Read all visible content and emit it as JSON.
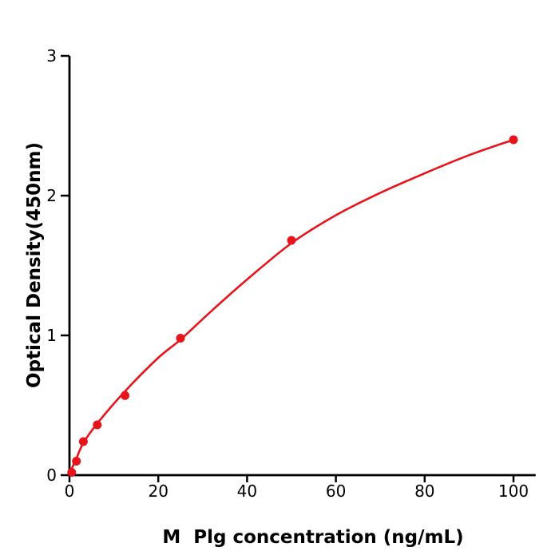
{
  "figure": {
    "background": "#ffffff"
  },
  "chart_data": {
    "type": "scatter",
    "subtype": "standard-curve-with-fitted-line",
    "title": "",
    "xlabel": "M  Plg concentration (ng/mL)",
    "ylabel": "Optical Density(450nm)",
    "xlim": [
      0,
      105
    ],
    "ylim": [
      0,
      3
    ],
    "x_ticks": [
      0,
      20,
      40,
      60,
      80,
      100
    ],
    "y_ticks": [
      0,
      1,
      2,
      3
    ],
    "grid": false,
    "legend": "none",
    "colors": {
      "curve": "#e8141c",
      "points": "#e8141c",
      "axis": "#000000",
      "text": "#000000",
      "background": "#ffffff"
    },
    "points": [
      [
        0.5,
        0.02
      ],
      [
        1.56,
        0.1
      ],
      [
        3.125,
        0.24
      ],
      [
        6.25,
        0.36
      ],
      [
        12.5,
        0.57
      ],
      [
        25,
        0.98
      ],
      [
        50,
        1.68
      ],
      [
        100,
        2.4
      ]
    ],
    "fit_curve": [
      [
        0,
        0.01
      ],
      [
        1.56,
        0.12
      ],
      [
        3.125,
        0.23
      ],
      [
        6.25,
        0.37
      ],
      [
        12.5,
        0.6
      ],
      [
        20,
        0.84
      ],
      [
        25,
        0.97
      ],
      [
        32.5,
        1.19
      ],
      [
        40,
        1.4
      ],
      [
        50,
        1.66
      ],
      [
        60,
        1.86
      ],
      [
        70,
        2.02
      ],
      [
        80,
        2.16
      ],
      [
        90,
        2.29
      ],
      [
        100,
        2.4
      ]
    ]
  }
}
